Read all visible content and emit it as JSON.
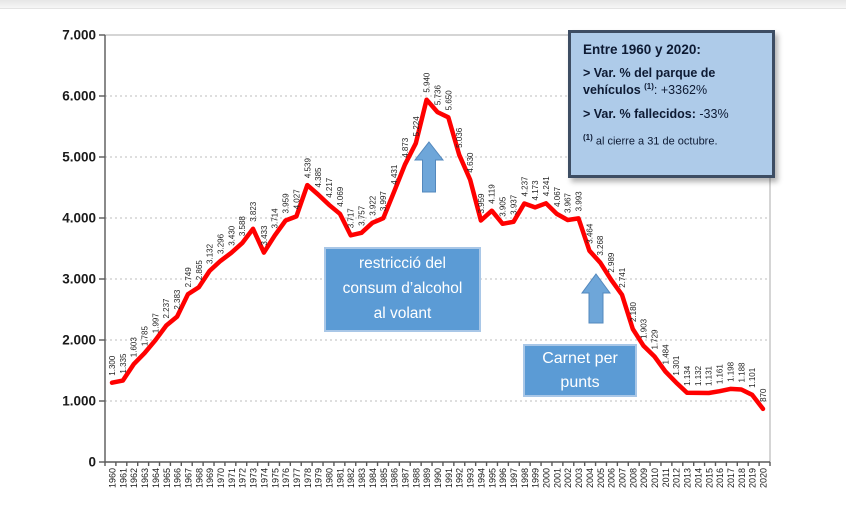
{
  "chart_data": {
    "type": "line",
    "title": "",
    "xlabel": "",
    "ylabel": "",
    "ylim": [
      0,
      7000
    ],
    "grid": "horizontal-dotted",
    "legend_position": "none",
    "line_color": "#ff0000",
    "x": [
      1960,
      1961,
      1962,
      1963,
      1964,
      1965,
      1966,
      1967,
      1968,
      1969,
      1970,
      1971,
      1972,
      1973,
      1974,
      1975,
      1976,
      1977,
      1978,
      1979,
      1980,
      1981,
      1982,
      1983,
      1984,
      1985,
      1986,
      1987,
      1988,
      1989,
      1990,
      1991,
      1992,
      1993,
      1994,
      1995,
      1996,
      1997,
      1998,
      1999,
      2000,
      2001,
      2002,
      2003,
      2004,
      2005,
      2006,
      2007,
      2008,
      2009,
      2010,
      2011,
      2012,
      2013,
      2014,
      2015,
      2016,
      2017,
      2018,
      2019,
      2020
    ],
    "values": [
      1300,
      1335,
      1603,
      1785,
      1997,
      2237,
      2383,
      2749,
      2865,
      3132,
      3296,
      3430,
      3588,
      3823,
      3433,
      3714,
      3959,
      4027,
      4539,
      4385,
      4217,
      4069,
      3717,
      3757,
      3922,
      3997,
      4431,
      4873,
      5224,
      5940,
      5736,
      5650,
      5036,
      4630,
      3959,
      4119,
      3905,
      3937,
      4237,
      4173,
      4241,
      4067,
      3967,
      3993,
      3464,
      3268,
      2989,
      2741,
      2180,
      1903,
      1729,
      1484,
      1301,
      1134,
      1132,
      1131,
      1161,
      1198,
      1188,
      1101,
      870
    ],
    "point_labels": [
      "1.300",
      "1.335",
      "1.603",
      "1.785",
      "1.997",
      "2.237",
      "2.383",
      "2.749",
      "2.865",
      "3.132",
      "3.296",
      "3.430",
      "3.588",
      "3.823",
      "3.433",
      "3.714",
      "3.959",
      "4.027",
      "4.539",
      "4.385",
      "4.217",
      "4.069",
      "3.717",
      "3.757",
      "3.922",
      "3.997",
      "4.431",
      "4.873",
      "5.224",
      "5.940",
      "5.736",
      "5.650",
      "5.036",
      "4.630",
      "3.959",
      "4.119",
      "3.905",
      "3.937",
      "4.237",
      "4.173",
      "4.241",
      "4.067",
      "3.967",
      "3.993",
      "3.464",
      "3.268",
      "2.989",
      "2.741",
      "2.180",
      "1.903",
      "1.729",
      "1.484",
      "1.301",
      "1.134",
      "1.132",
      "1.131",
      "1.161",
      "1.198",
      "1.188",
      "1.101",
      "870"
    ],
    "ytick_labels": [
      "0",
      "1.000",
      "2.000",
      "3.000",
      "4.000",
      "5.000",
      "6.000",
      "7.000"
    ]
  },
  "annotations": {
    "alcohol_box": {
      "text": "restricció del consum d’alcohol al volant"
    },
    "carnet_box": {
      "text": "Carnet per punts"
    },
    "legend_box": {
      "title": "Entre 1960 y 2020:",
      "vehicles_line_bold": "> Var. % del parque de vehículos ",
      "vehicles_sup": "(1)",
      "vehicles_value": ": +3362%",
      "deaths_line_bold": "> Var. % fallecidos:",
      "deaths_value": " -33%",
      "footnote_sup": "(1)",
      "footnote_text": " al cierre a 31 de octubre."
    }
  },
  "colors": {
    "line": "#ff0000",
    "callout_fill": "#5b9bd5",
    "callout_border": "#a9c7e7",
    "summary_fill": "#aecbe9",
    "summary_border": "#3d4d63",
    "arrow_fill": "#6ea6d9",
    "arrow_stroke": "#5388bd"
  }
}
